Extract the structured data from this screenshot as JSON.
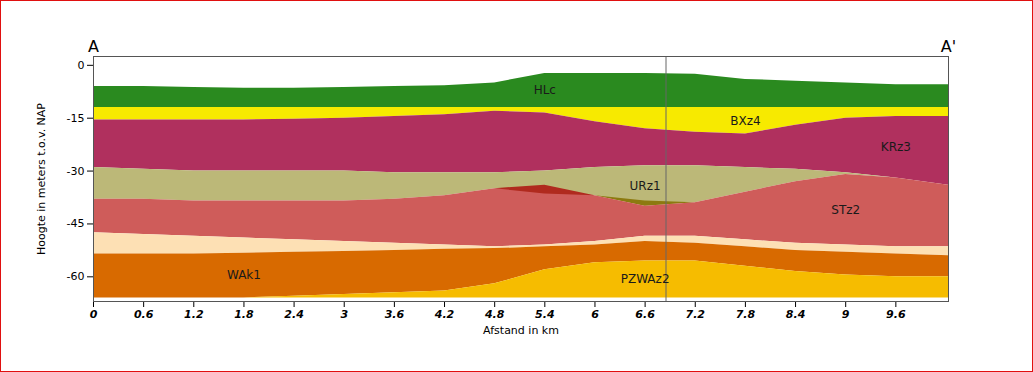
{
  "chart_data": {
    "type": "cross_section",
    "xlabel": "Afstand in km",
    "ylabel": "Hoogte in meters t.o.v. NAP",
    "x": [
      0,
      0.6,
      1.2,
      1.8,
      2.4,
      3,
      3.6,
      4.2,
      4.8,
      5.4,
      6,
      6.6,
      7.2,
      7.8,
      8.4,
      9,
      9.6,
      10.23
    ],
    "xlim": [
      0,
      10.23
    ],
    "xticks": [
      0,
      0.6,
      1.2,
      1.8,
      2.4,
      3,
      3.6,
      4.2,
      4.8,
      5.4,
      6,
      6.6,
      7.2,
      7.8,
      8.4,
      9,
      9.6
    ],
    "ylim": [
      -67,
      2.5
    ],
    "yticks": [
      0,
      -15,
      -30,
      -45,
      -60
    ],
    "grid": false,
    "annotations": [
      {
        "text": "A",
        "x": 0
      },
      {
        "text": "A'",
        "x": 10.23
      }
    ],
    "vlines": [
      6.85
    ],
    "series": [
      {
        "name": "HLc",
        "color": "#2a8a1f",
        "top": [
          -6,
          -6,
          -6.3,
          -6.5,
          -6.5,
          -6.3,
          -6,
          -5.8,
          -5,
          -2.3,
          -2.3,
          -2.3,
          -2.5,
          -4,
          -4.5,
          -5,
          -5.5,
          -5.5
        ],
        "bottom": [
          -12,
          -12,
          -12,
          -12,
          -12,
          -12,
          -12,
          -12,
          -12,
          -12,
          -12,
          -12,
          -12,
          -12,
          -12,
          -12,
          -12,
          -12
        ]
      },
      {
        "name": "BXz4",
        "color": "#f7ea00",
        "top": [
          -12,
          -12,
          -12,
          -12,
          -12,
          -12,
          -12,
          -12,
          -12,
          -12,
          -12,
          -12,
          -12,
          -12,
          -12,
          -12,
          -12,
          -12
        ],
        "bottom": [
          -15.5,
          -15.5,
          -15.5,
          -15.5,
          -15.3,
          -15,
          -14.5,
          -14,
          -13,
          -13.5,
          -16,
          -18,
          -19,
          -19.5,
          -17,
          -15,
          -14.5,
          -14.5
        ]
      },
      {
        "name": "KRz3",
        "color": "#b0305e",
        "top": [
          -15.5,
          -15.5,
          -15.5,
          -15.5,
          -15.3,
          -15,
          -14.5,
          -14,
          -13,
          -13.5,
          -16,
          -18,
          -19,
          -19.5,
          -17,
          -15,
          -14.5,
          -14.5
        ],
        "bottom": [
          -29,
          -29.5,
          -30,
          -30,
          -30,
          -30,
          -30.5,
          -30.5,
          -30.5,
          -30,
          -29,
          -28.5,
          -28.5,
          -29,
          -29.5,
          -30.5,
          -32,
          -34
        ]
      },
      {
        "name": "URz1",
        "color": "#bcb878",
        "top": [
          -29,
          -29.5,
          -30,
          -30,
          -30,
          -30,
          -30.5,
          -30.5,
          -30.5,
          -30,
          -29,
          -28.5,
          -28.5,
          -29,
          -29.5,
          -30.5,
          -32,
          -34
        ],
        "bottom": [
          -38,
          -38,
          -38.5,
          -38.5,
          -38.5,
          -38.5,
          -38,
          -37,
          -35,
          -35,
          -37,
          -40,
          -39,
          -36,
          -33,
          -31,
          -32,
          -34
        ]
      },
      {
        "name": null,
        "color": "#8c7a10",
        "top": [
          null,
          null,
          null,
          null,
          null,
          null,
          null,
          null,
          null,
          null,
          -37,
          -38.5,
          -39,
          null,
          null,
          null,
          null,
          null
        ],
        "bottom": [
          null,
          null,
          null,
          null,
          null,
          null,
          null,
          null,
          null,
          null,
          -37,
          -40,
          -39,
          null,
          null,
          null,
          null,
          null
        ]
      },
      {
        "name": "STz2",
        "color": "#cf5c5a",
        "top": [
          -38,
          -38,
          -38.5,
          -38.5,
          -38.5,
          -38.5,
          -38,
          -37,
          -35,
          -35,
          -37,
          -40,
          -39,
          -36,
          -33,
          -31,
          -32,
          -34
        ],
        "bottom": [
          -47.5,
          -48,
          -48.5,
          -49,
          -49.5,
          -50,
          -50.5,
          -51,
          -51.5,
          -51,
          -50,
          -48.5,
          -48.5,
          -49.5,
          -50.5,
          -51,
          -51.5,
          -51.5
        ]
      },
      {
        "name": null,
        "color": "#b02a1e",
        "top": [
          null,
          null,
          null,
          null,
          null,
          null,
          null,
          null,
          -35,
          -34,
          -37,
          null,
          null,
          null,
          null,
          null,
          null,
          null
        ],
        "bottom": [
          null,
          null,
          null,
          null,
          null,
          null,
          null,
          null,
          -35,
          -36.5,
          -37,
          null,
          null,
          null,
          null,
          null,
          null,
          null
        ]
      },
      {
        "name": null,
        "color": "#fde0b4",
        "top": [
          -47.5,
          -48,
          -48.5,
          -49,
          -49.5,
          -50,
          -50.5,
          -51,
          -51.5,
          -51,
          -50,
          -48.5,
          -48.5,
          -49.5,
          -50.5,
          -51,
          -51.5,
          -51.5
        ],
        "bottom": [
          -53.5,
          -53.5,
          -53.5,
          -53.3,
          -53,
          -52.8,
          -52.5,
          -52.2,
          -52,
          -51.5,
          -51,
          -50,
          -50.5,
          -51.5,
          -52.5,
          -53,
          -53.5,
          -54
        ]
      },
      {
        "name": "WAk1",
        "color": "#d86a00",
        "top": [
          -53.5,
          -53.5,
          -53.5,
          -53.3,
          -53,
          -52.8,
          -52.5,
          -52.2,
          -52,
          -51.5,
          -51,
          -50,
          -50.5,
          -51.5,
          -52.5,
          -53,
          -53.5,
          -54
        ],
        "bottom": [
          -66,
          -66,
          -66,
          -66,
          -65.5,
          -65,
          -64.5,
          -64,
          -62,
          -58,
          -56,
          -55.5,
          -55.5,
          -57,
          -58.5,
          -59.5,
          -60,
          -60
        ]
      },
      {
        "name": "PZWAz2",
        "color": "#f6bc00",
        "top": [
          -66,
          -66,
          -66,
          -66,
          -65.5,
          -65,
          -64.5,
          -64,
          -62,
          -58,
          -56,
          -55.5,
          -55.5,
          -57,
          -58.5,
          -59.5,
          -60,
          -60
        ],
        "bottom": [
          -66,
          -66,
          -66,
          -66,
          -66,
          -66,
          -66,
          -66,
          -66,
          -66,
          -66,
          -66,
          -66,
          -66,
          -66,
          -66,
          -66,
          -66
        ]
      }
    ]
  }
}
